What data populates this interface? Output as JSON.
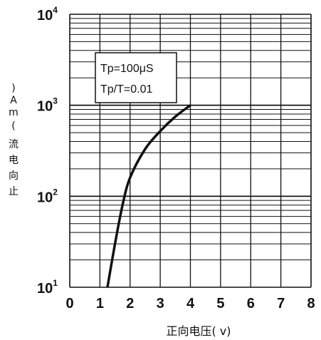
{
  "chart_data": {
    "type": "line",
    "title": "",
    "xlabel": "正向电压( v)",
    "ylabel_chars": [
      ")",
      "A",
      "m",
      "(",
      "流",
      "电",
      "向",
      "止"
    ],
    "xlim": [
      0,
      8
    ],
    "ylim": [
      10,
      10000
    ],
    "yscale": "log",
    "grid": true,
    "x_ticks": [
      "0",
      "1",
      "2",
      "3",
      "4",
      "5",
      "6",
      "7",
      "8"
    ],
    "y_ticks": [
      {
        "base": "10",
        "exp": "1"
      },
      {
        "base": "10",
        "exp": "2"
      },
      {
        "base": "10",
        "exp": "3"
      },
      {
        "base": "10",
        "exp": "4"
      }
    ],
    "annotation": [
      "Tp=100μS",
      "Tp/T=0.01"
    ],
    "series": [
      {
        "x": [
          1.25,
          1.5,
          1.75,
          2.0,
          2.5,
          3.0,
          3.5,
          4.0
        ],
        "y": [
          10,
          30,
          80,
          160,
          330,
          520,
          750,
          1000
        ]
      }
    ]
  }
}
